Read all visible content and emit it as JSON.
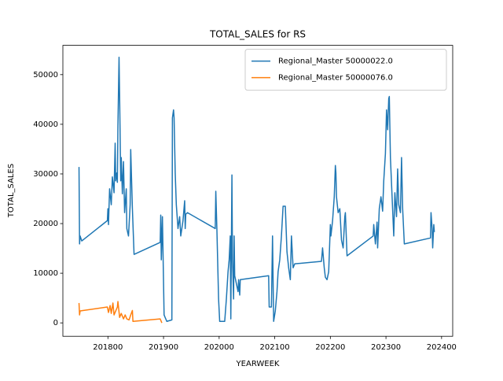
{
  "chart_data": {
    "type": "line",
    "title": "TOTAL_SALES for RS",
    "x_label": "YEARWEEK",
    "y_label": "TOTAL_SALES",
    "legend": "upper right",
    "grid": false,
    "xlim": [
      201719,
      202420
    ],
    "ylim": [
      -2700,
      55900
    ],
    "xticks": [
      201800,
      201900,
      202000,
      202100,
      202200,
      202300,
      202400
    ],
    "yticks": [
      0,
      10000,
      20000,
      30000,
      40000,
      50000
    ],
    "series": [
      {
        "name": "Regional_Master 50000022.0",
        "color": "#1f77b4",
        "x": [
          201748,
          201749,
          201750,
          201753,
          201799,
          201800,
          201801,
          201803,
          201806,
          201808,
          201811,
          201813,
          201814,
          201816,
          201817,
          201818,
          201820,
          201821,
          201823,
          201824,
          201826,
          201828,
          201830,
          201833,
          201834,
          201837,
          201840,
          201841,
          201844,
          201847,
          201894,
          201895,
          201896,
          201898,
          201901,
          201904,
          201906,
          201915,
          201916,
          201918,
          201919,
          201921,
          201923,
          201926,
          201929,
          201931,
          201935,
          201938,
          201939,
          201940,
          201943,
          201993,
          201994,
          201996,
          201999,
          202001,
          202010,
          202013,
          202016,
          202018,
          202020,
          202021,
          202023,
          202024,
          202026,
          202027,
          202028,
          202031,
          202034,
          202035,
          202037,
          202038,
          202089,
          202090,
          202094,
          202096,
          202098,
          202101,
          202104,
          202106,
          202109,
          202112,
          202115,
          202119,
          202122,
          202125,
          202128,
          202130,
          202133,
          202136,
          202184,
          202186,
          202189,
          202191,
          202194,
          202197,
          202200,
          202201,
          202204,
          202207,
          202209,
          202210,
          202211,
          202214,
          202217,
          202220,
          202223,
          202226,
          202227,
          202230,
          202277,
          202278,
          202281,
          202284,
          202285,
          202288,
          202291,
          202294,
          202296,
          202299,
          202301,
          202303,
          202305,
          202306,
          202308,
          202311,
          202314,
          202316,
          202319,
          202321,
          202323,
          202326,
          202328,
          202330,
          202333,
          202380,
          202381,
          202383,
          202384,
          202386,
          202387
        ],
        "values": [
          31400,
          15900,
          17500,
          16500,
          20600,
          23000,
          19800,
          27000,
          23800,
          29400,
          26200,
          36200,
          28600,
          30200,
          28300,
          39700,
          53500,
          46000,
          28600,
          33300,
          26000,
          32500,
          22200,
          27000,
          19000,
          17500,
          23800,
          34900,
          23000,
          13800,
          16200,
          21700,
          12700,
          21400,
          1600,
          800,
          300,
          600,
          41300,
          42900,
          41300,
          30200,
          23800,
          19000,
          21400,
          17500,
          20600,
          24600,
          19000,
          21900,
          22200,
          19000,
          26500,
          18700,
          4800,
          300,
          300,
          4800,
          10300,
          12700,
          17500,
          800,
          29800,
          12700,
          4800,
          17500,
          9500,
          7900,
          6300,
          8700,
          5600,
          8700,
          9500,
          3200,
          3200,
          17500,
          300,
          2400,
          6300,
          10300,
          12700,
          17500,
          23500,
          23500,
          14300,
          11100,
          8700,
          17500,
          11100,
          11900,
          12400,
          15100,
          11100,
          9200,
          8700,
          10300,
          19800,
          17500,
          20600,
          25400,
          31700,
          30200,
          25400,
          22200,
          23000,
          16700,
          15100,
          21400,
          22200,
          13500,
          17500,
          19800,
          15900,
          20300,
          15100,
          23000,
          25400,
          22500,
          28600,
          34100,
          42900,
          38900,
          45200,
          45600,
          33300,
          25400,
          17500,
          26200,
          21400,
          31000,
          23800,
          22200,
          33300,
          23000,
          15900,
          17100,
          22200,
          19000,
          15100,
          19800,
          18300
        ]
      },
      {
        "name": "Regional_Master 50000076.0",
        "color": "#ff7f0e",
        "x": [
          201748,
          201749,
          201750,
          201799,
          201801,
          201804,
          201806,
          201809,
          201811,
          201814,
          201817,
          201818,
          201821,
          201824,
          201828,
          201831,
          201834,
          201838,
          201841,
          201844,
          201845,
          201894,
          201897
        ],
        "values": [
          4000,
          1600,
          2400,
          3200,
          2100,
          3500,
          1900,
          4000,
          1600,
          2400,
          3200,
          4300,
          1100,
          1900,
          800,
          1600,
          800,
          600,
          1600,
          2500,
          300,
          800,
          0
        ]
      }
    ]
  }
}
